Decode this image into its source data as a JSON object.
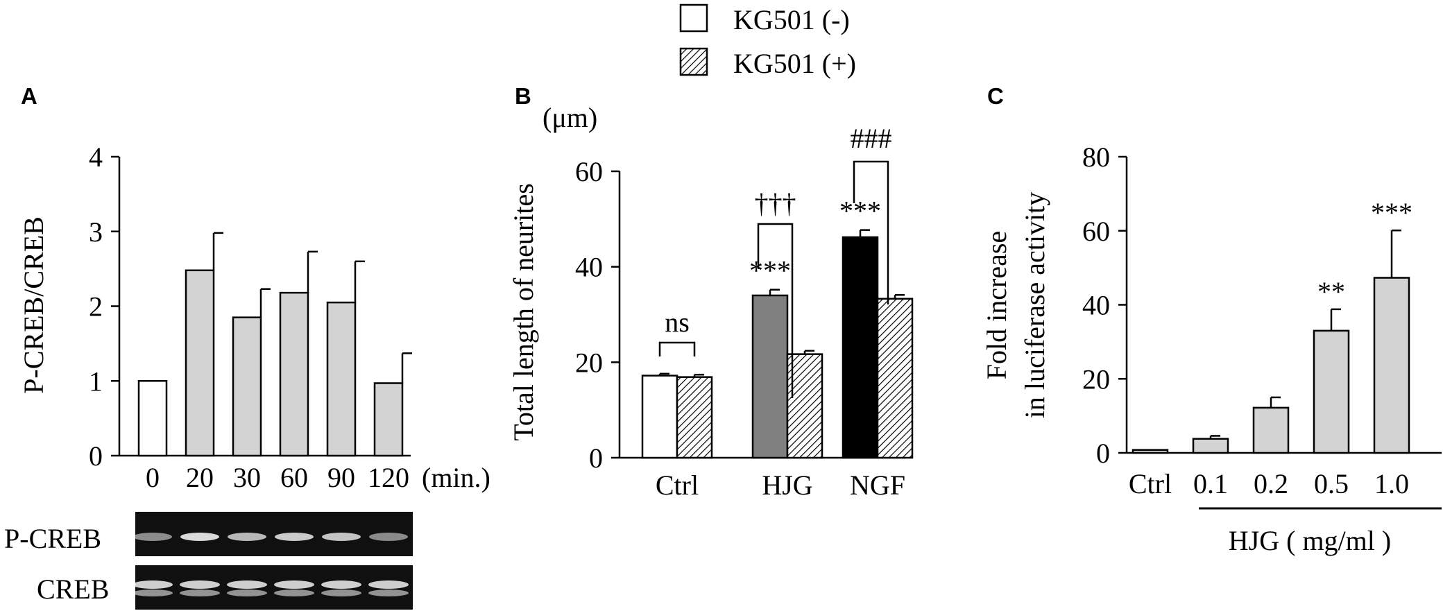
{
  "legend": {
    "entries": [
      {
        "label": "KG501 (-)",
        "fill": "#ffffff"
      },
      {
        "label": "KG501 (+)",
        "fill": "hatch"
      }
    ]
  },
  "chart_data": [
    {
      "panel": "A",
      "type": "bar",
      "ylabel": "P-CREB/CREB",
      "xunit": "(min.)",
      "ylim": [
        0,
        4
      ],
      "yticks": [
        "0",
        "1",
        "2",
        "3",
        "4"
      ],
      "categories": [
        "0",
        "20",
        "30",
        "60",
        "90",
        "120"
      ],
      "values": [
        1.0,
        2.48,
        1.85,
        2.18,
        2.05,
        0.97
      ],
      "errors": [
        0,
        0.5,
        0.38,
        0.55,
        0.55,
        0.4
      ],
      "fills": [
        "#ffffff",
        "#d3d3d3",
        "#d3d3d3",
        "#d3d3d3",
        "#d3d3d3",
        "#d3d3d3"
      ],
      "blot_labels": [
        "P-CREB",
        "CREB"
      ],
      "grid": false
    },
    {
      "panel": "B",
      "type": "bar",
      "ylabel": "Total length of neurites",
      "yunit": "(μm)",
      "ylim": [
        0,
        60
      ],
      "yticks": [
        "0",
        "20",
        "40",
        "60"
      ],
      "categories": [
        "Ctrl",
        "HJG",
        "NGF"
      ],
      "series": [
        {
          "legend_index": 0,
          "values": [
            17.2,
            34.0,
            46.2
          ],
          "errors": [
            0.4,
            1.2,
            1.5
          ],
          "fills": [
            "#ffffff",
            "#808080",
            "#000000"
          ]
        },
        {
          "legend_index": 1,
          "values": [
            16.9,
            21.7,
            33.3
          ],
          "errors": [
            0.5,
            0.7,
            0.8
          ],
          "fills": [
            "hatch",
            "hatch",
            "hatch"
          ]
        }
      ],
      "star_labels": [
        "",
        "***",
        "***"
      ],
      "brackets": [
        "ns",
        "†††",
        "###"
      ],
      "grid": false
    },
    {
      "panel": "C",
      "type": "bar",
      "ylabel_lines": [
        "Fold increase",
        "in luciferase activity"
      ],
      "ylim": [
        0,
        80
      ],
      "yticks": [
        "0",
        "20",
        "40",
        "60",
        "80"
      ],
      "categories": [
        "Ctrl",
        "0.1",
        "0.2",
        "0.5",
        "1.0"
      ],
      "values": [
        0.8,
        3.8,
        12.2,
        33.0,
        47.3
      ],
      "errors": [
        0,
        0.8,
        2.8,
        5.8,
        12.8
      ],
      "star_labels": [
        "",
        "",
        "",
        "**",
        "***"
      ],
      "fill": "#d3d3d3",
      "group_label": "HJG ( mg/ml )",
      "grid": false
    }
  ]
}
